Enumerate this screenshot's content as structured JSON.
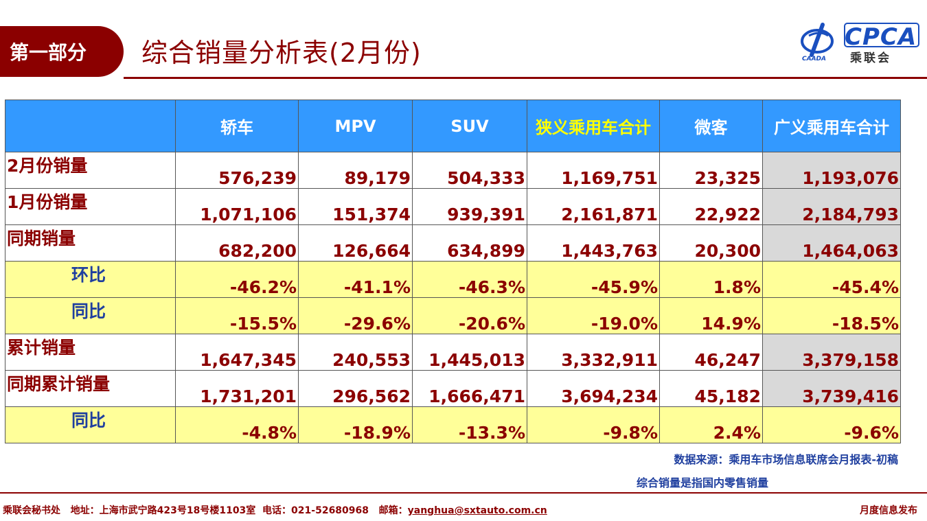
{
  "header": {
    "section": "第一部分",
    "title": "综合销量分析表(2月份)"
  },
  "logo": {
    "main": "CPCA",
    "sub": "乘联会",
    "small": "CAADA"
  },
  "table": {
    "columns": [
      "",
      "轿车",
      "MPV",
      "SUV",
      "狭义乘用车合计",
      "微客",
      "广义乘用车合计"
    ],
    "rows": [
      {
        "label": "2月份销量",
        "values": [
          "576,239",
          "89,179",
          "504,333",
          "1,169,751",
          "23,325",
          "1,193,076"
        ]
      },
      {
        "label": "1月份销量",
        "values": [
          "1,071,106",
          "151,374",
          "939,391",
          "2,161,871",
          "22,922",
          "2,184,793"
        ]
      },
      {
        "label": "同期销量",
        "values": [
          "682,200",
          "126,664",
          "634,899",
          "1,443,763",
          "20,300",
          "1,464,063"
        ]
      },
      {
        "label": "环比",
        "values": [
          "-46.2%",
          "-41.1%",
          "-46.3%",
          "-45.9%",
          "1.8%",
          "-45.4%"
        ]
      },
      {
        "label": "同比",
        "values": [
          "-15.5%",
          "-29.6%",
          "-20.6%",
          "-19.0%",
          "14.9%",
          "-18.5%"
        ]
      },
      {
        "label": "累计销量",
        "values": [
          "1,647,345",
          "240,553",
          "1,445,013",
          "3,332,911",
          "46,247",
          "3,379,158"
        ]
      },
      {
        "label": "同期累计销量",
        "values": [
          "1,731,201",
          "296,562",
          "1,666,471",
          "3,694,234",
          "45,182",
          "3,739,416"
        ]
      },
      {
        "label": "同比",
        "values": [
          "-4.8%",
          "-18.9%",
          "-13.3%",
          "-9.8%",
          "2.4%",
          "-9.6%"
        ]
      }
    ]
  },
  "notes": {
    "source": "数据来源：乘用车市场信息联席会月报表-初稿",
    "definition": "综合销量是指国内零售销量"
  },
  "footer": {
    "org": "乘联会秘书处",
    "address": "地址：上海市武宁路423号18号楼1103室",
    "phone": "电话：021-52680968",
    "email_label": "邮箱：",
    "email": "yanghua@sxtauto.com.cn",
    "right": "月度信息发布"
  },
  "colors": {
    "brand": "#8b0000",
    "header_bg": "#3399ff",
    "pct_bg": "#ffff99",
    "shade": "#d9d9d9",
    "accent_text": "#1f3f9f"
  }
}
